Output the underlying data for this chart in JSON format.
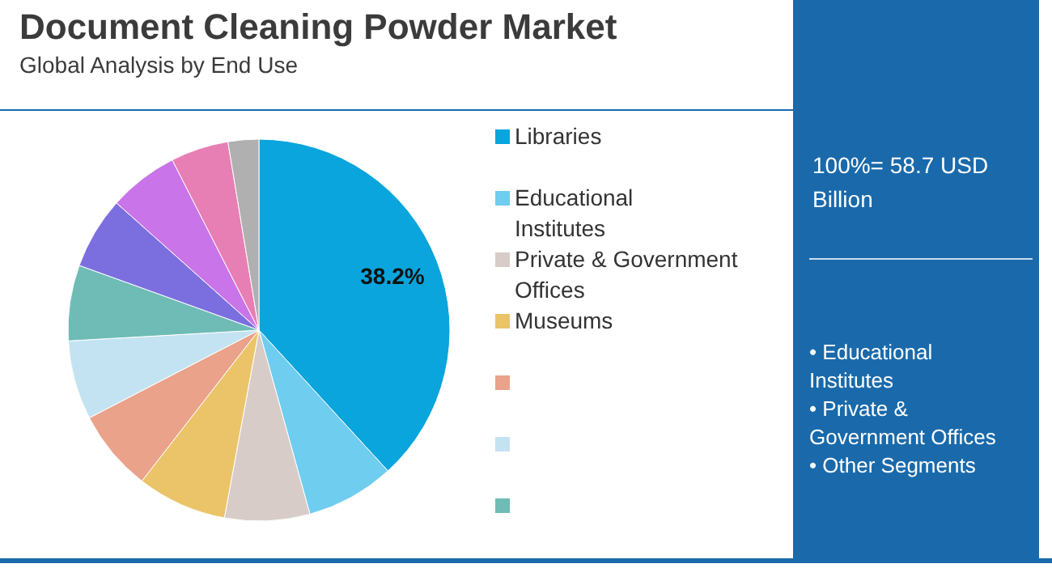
{
  "chart_data": {
    "type": "pie",
    "title": "Document Cleaning Powder Market",
    "subtitle": "Global Analysis by End Use",
    "categories": [
      "Libraries",
      "Educational Institutes",
      "Private & Government Offices",
      "Museums",
      null,
      null,
      null,
      null,
      null,
      null,
      null
    ],
    "values": [
      38.2,
      7.5,
      7.2,
      7.6,
      6.9,
      6.7,
      6.4,
      6.1,
      5.9,
      4.9,
      2.6
    ],
    "colors": [
      "#0aa5dc",
      "#6fcdf0",
      "#d8ccc8",
      "#ebc46a",
      "#eaa28a",
      "#c4e3f2",
      "#6fbcb6",
      "#7b6fe0",
      "#c974e8",
      "#e77fb5",
      "#b0b0b0"
    ],
    "value_labels": [
      "38.2%",
      null,
      null,
      null,
      null,
      null,
      null,
      null,
      null,
      null,
      null
    ],
    "legend": "right",
    "annotations": [
      "100%= 58.7 USD Billion",
      "• Educational Institutes",
      "• Private & Government Offices",
      "• Other Segments"
    ]
  }
}
